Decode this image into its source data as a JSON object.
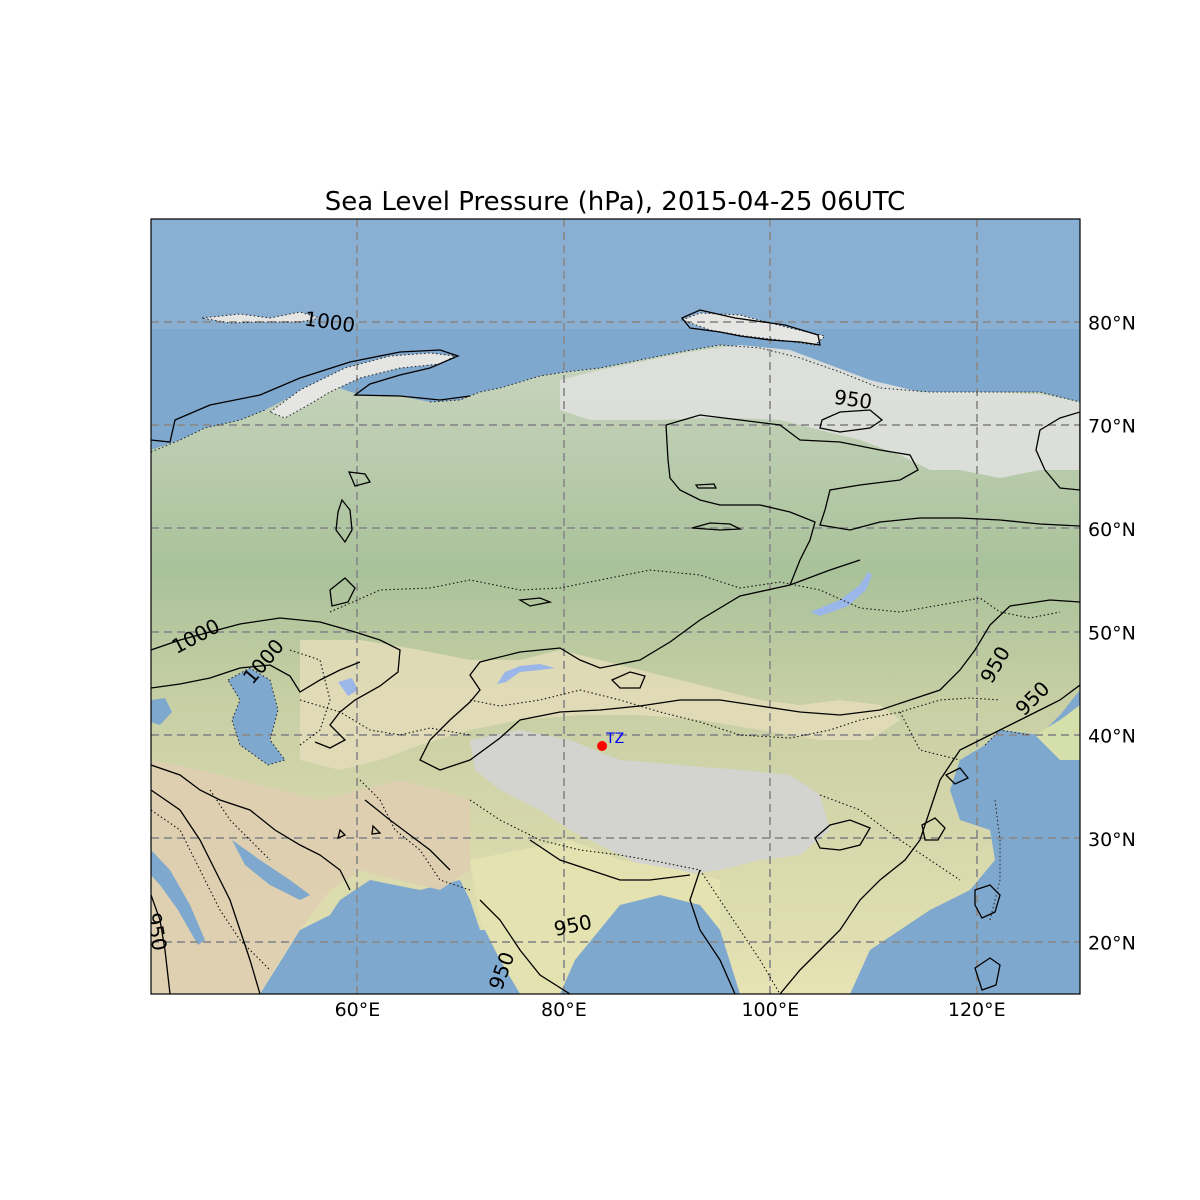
{
  "title": "Sea Level Pressure (hPa), 2015-04-25 06UTC",
  "map": {
    "projection": "PlateCarree",
    "lon_range": [
      40,
      130
    ],
    "lat_range": [
      15,
      90
    ],
    "background": "shaded-relief",
    "gridlines": true,
    "lon_ticks": [
      {
        "value": 60,
        "label": "60°E"
      },
      {
        "value": 80,
        "label": "80°E"
      },
      {
        "value": 100,
        "label": "100°E"
      },
      {
        "value": 120,
        "label": "120°E"
      }
    ],
    "lat_ticks": [
      {
        "value": 80,
        "label": "80°N"
      },
      {
        "value": 70,
        "label": "70°N"
      },
      {
        "value": 60,
        "label": "60°N"
      },
      {
        "value": 50,
        "label": "50°N"
      },
      {
        "value": 40,
        "label": "40°N"
      },
      {
        "value": 30,
        "label": "30°N"
      },
      {
        "value": 20,
        "label": "20°N"
      }
    ]
  },
  "station": {
    "name": "TZ",
    "lon": 83.7,
    "lat": 39.0,
    "marker_color": "#ff0000",
    "label_color": "#0000ff"
  },
  "contour_labels": [
    {
      "text": "1000",
      "lon": 57.3,
      "lat": 79.9
    },
    {
      "text": "950",
      "lon": 108.0,
      "lat": 72.4
    },
    {
      "text": "1000",
      "lon": 44.4,
      "lat": 49.5
    },
    {
      "text": "1000",
      "lon": 51.0,
      "lat": 47.1
    },
    {
      "text": "950",
      "lon": 121.9,
      "lat": 46.8
    },
    {
      "text": "950",
      "lon": 125.5,
      "lat": 43.5
    },
    {
      "text": "950",
      "lon": 80.9,
      "lat": 21.5
    },
    {
      "text": "950",
      "lon": 74.1,
      "lat": 17.2
    },
    {
      "text": "950",
      "lon": 40.4,
      "lat": 21.0
    }
  ],
  "colors": {
    "ocean": "#7fa8cf",
    "arctic_ice": "#e2e2e2",
    "taiga": "#a9c29a",
    "steppe": "#e6e2b4",
    "desert": "#ded0b2",
    "tibet": "#d6d6d4",
    "lake": "#9bb6e8",
    "contour": "#000000"
  }
}
